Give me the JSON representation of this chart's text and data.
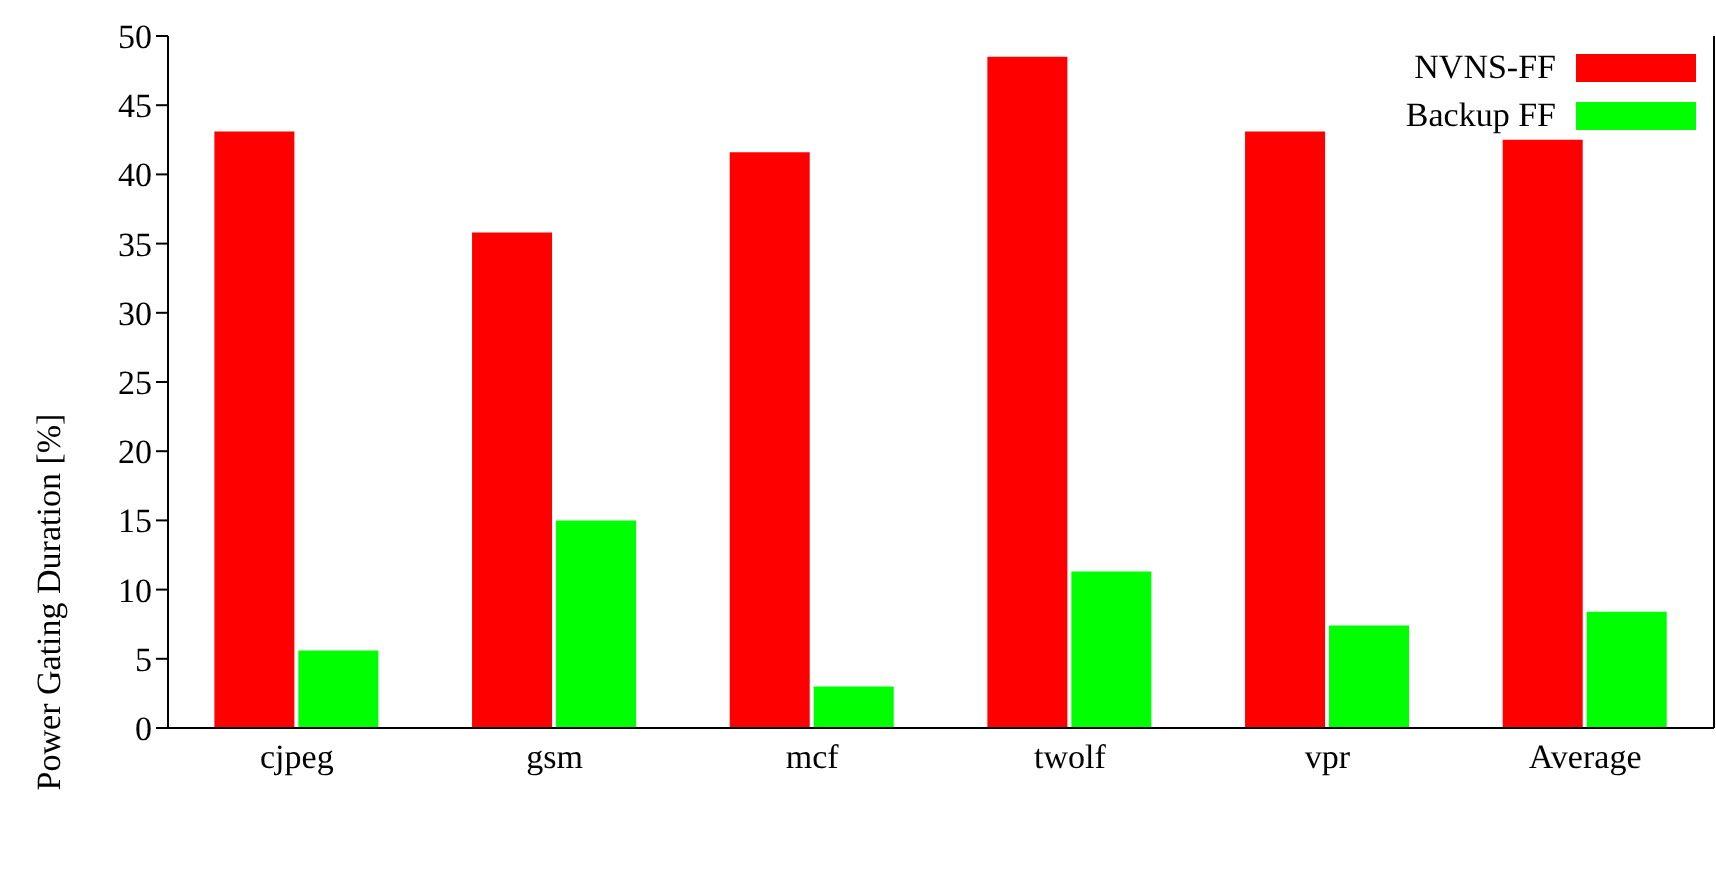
{
  "chart_data": {
    "type": "bar",
    "ylabel": "Power Gating Duration [%]",
    "categories": [
      "cjpeg",
      "gsm",
      "mcf",
      "twolf",
      "vpr",
      "Average"
    ],
    "series": [
      {
        "name": "NVNS-FF",
        "color": "#ff0000",
        "values": [
          43.1,
          35.8,
          41.6,
          48.5,
          43.1,
          42.5
        ]
      },
      {
        "name": "Backup FF",
        "color": "#00ff00",
        "values": [
          5.6,
          15.0,
          3.0,
          11.3,
          7.4,
          8.4
        ]
      }
    ],
    "ylim": [
      0,
      50
    ],
    "yticks": [
      0,
      5,
      10,
      15,
      20,
      25,
      30,
      35,
      40,
      45,
      50
    ],
    "grid": false,
    "legend": "top right"
  }
}
